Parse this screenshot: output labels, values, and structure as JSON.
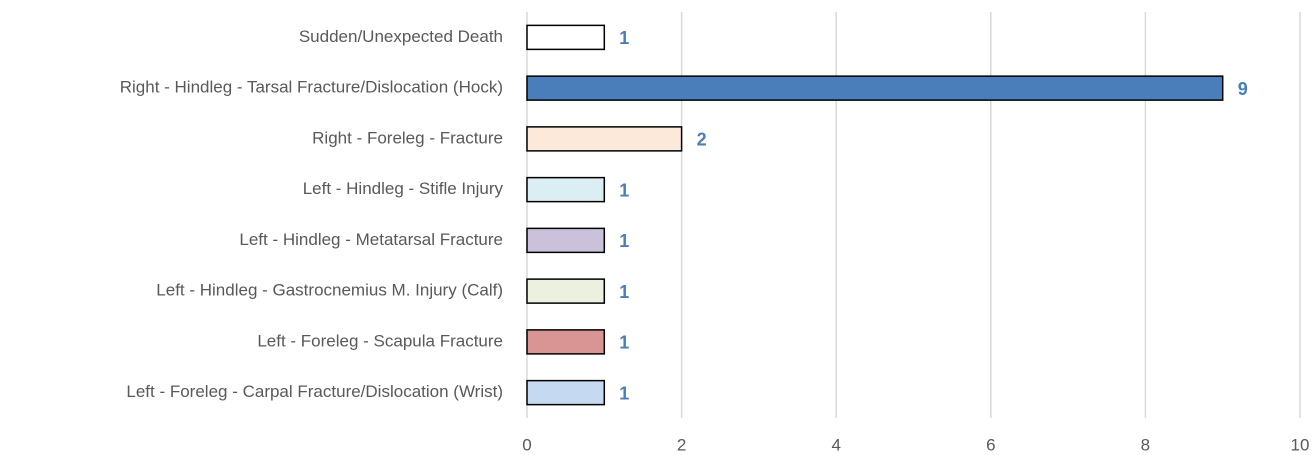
{
  "chart_data": {
    "type": "hbar",
    "categories": [
      "Sudden/Unexpected Death",
      "Right - Hindleg - Tarsal Fracture/Dislocation (Hock)",
      "Right - Foreleg - Fracture",
      "Left - Hindleg - Stifle Injury",
      "Left - Hindleg - Metatarsal Fracture",
      "Left - Hindleg - Gastrocnemius M. Injury (Calf)",
      "Left - Foreleg - Scapula Fracture",
      "Left - Foreleg - Carpal Fracture/Dislocation (Wrist)"
    ],
    "values": [
      1,
      9,
      2,
      1,
      1,
      1,
      1,
      1
    ],
    "colors": [
      "#ffffff",
      "#4a7ebb",
      "#fde9d9",
      "#dbeef4",
      "#ccc1da",
      "#ebf1de",
      "#d99594",
      "#c5d9f1"
    ],
    "value_label_color": "#4a7ebb",
    "xlim": [
      0,
      10
    ],
    "xticks": [
      0,
      2,
      4,
      6,
      8,
      10
    ],
    "grid": true
  }
}
